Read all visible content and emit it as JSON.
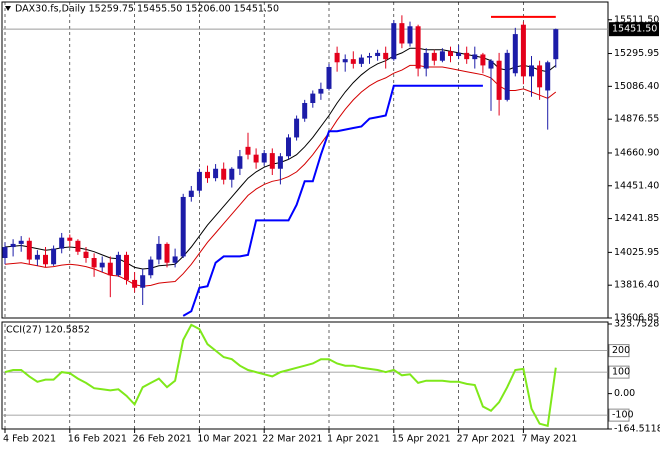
{
  "chart_data": [
    {
      "type": "candlestick",
      "title": "DAX30.fs,Daily  15259.75 15455.50 15206.00 15451.50",
      "categories": [
        "4 Feb 2021",
        null,
        null,
        null,
        null,
        null,
        null,
        null,
        "16 Feb 2021",
        null,
        null,
        null,
        null,
        null,
        null,
        null,
        "26 Feb 2021",
        null,
        null,
        null,
        null,
        null,
        null,
        null,
        "10 Mar 2021",
        null,
        null,
        null,
        null,
        null,
        null,
        null,
        "22 Mar 2021",
        null,
        null,
        null,
        null,
        null,
        null,
        null,
        "1 Apr 2021",
        null,
        null,
        null,
        null,
        null,
        null,
        null,
        "15 Apr 2021",
        null,
        null,
        null,
        null,
        null,
        null,
        null,
        "27 Apr 2021",
        null,
        null,
        null,
        null,
        null,
        null,
        null,
        "7 May 2021",
        null,
        null,
        null,
        null
      ],
      "open": [
        13990,
        14060,
        14080,
        14100,
        13980,
        14010,
        13950,
        14050,
        14120,
        14100,
        14030,
        13990,
        13930,
        13960,
        13880,
        14010,
        13850,
        13800,
        13880,
        13980,
        14080,
        13960,
        14000,
        14380,
        14420,
        14540,
        14500,
        14560,
        14490,
        14560,
        14700,
        14650,
        14600,
        14660,
        14560,
        14640,
        14760,
        14880,
        14980,
        15040,
        15070,
        15300,
        15240,
        15260,
        15230,
        15270,
        15280,
        15300,
        15260,
        15490,
        15360,
        15470,
        15200,
        15300,
        15250,
        15310,
        15280,
        15300,
        15260,
        15290,
        15200,
        15250,
        15000,
        15170,
        15480,
        15150,
        15220,
        15060,
        15259.75
      ],
      "high": [
        14090,
        14110,
        14130,
        14120,
        14040,
        14060,
        14070,
        14150,
        14140,
        14110,
        14060,
        14020,
        14000,
        14000,
        14030,
        14030,
        13900,
        13920,
        14000,
        14130,
        14090,
        14050,
        14400,
        14450,
        14560,
        14580,
        14590,
        14600,
        14570,
        14680,
        14790,
        14690,
        14680,
        14690,
        14660,
        14780,
        14900,
        15000,
        15060,
        15110,
        15230,
        15340,
        15290,
        15310,
        15290,
        15300,
        15320,
        15340,
        15510,
        15540,
        15500,
        15480,
        15330,
        15320,
        15330,
        15340,
        15350,
        15340,
        15340,
        15300,
        15260,
        15300,
        15320,
        15460,
        15500,
        15280,
        15250,
        15250,
        15455.5
      ],
      "low": [
        13950,
        14000,
        14030,
        13950,
        13940,
        13930,
        13940,
        14020,
        14060,
        14010,
        13960,
        13870,
        13900,
        13740,
        13870,
        13820,
        13770,
        13690,
        13860,
        13950,
        13930,
        13930,
        13990,
        14350,
        14400,
        14470,
        14480,
        14460,
        14440,
        14520,
        14620,
        14560,
        14580,
        14520,
        14460,
        14620,
        14740,
        14860,
        14950,
        15000,
        15060,
        15180,
        15180,
        15200,
        15210,
        15230,
        15250,
        15200,
        15250,
        15330,
        15340,
        15150,
        15150,
        15220,
        15240,
        15240,
        15260,
        15230,
        15200,
        15170,
        14930,
        14900,
        14990,
        15150,
        15100,
        15020,
        15000,
        14810,
        15206
      ],
      "close": [
        14060,
        14080,
        14100,
        13980,
        14010,
        13950,
        14050,
        14120,
        14100,
        14030,
        13990,
        13930,
        13960,
        13880,
        14010,
        13850,
        13800,
        13880,
        13980,
        14080,
        13960,
        14000,
        14380,
        14420,
        14540,
        14500,
        14560,
        14490,
        14560,
        14640,
        14650,
        14600,
        14660,
        14560,
        14640,
        14760,
        14880,
        14980,
        15040,
        15070,
        15210,
        15240,
        15260,
        15230,
        15270,
        15280,
        15300,
        15260,
        15490,
        15360,
        15470,
        15200,
        15300,
        15250,
        15310,
        15280,
        15300,
        15260,
        15290,
        15220,
        15250,
        15000,
        15300,
        15420,
        15150,
        15220,
        15080,
        15240,
        15451.5
      ],
      "up_color": "#1c1ca8",
      "down_color": "#e3001b",
      "overlays": [
        {
          "color": "#000000",
          "values": [
            14060,
            14065,
            14070,
            14060,
            14050,
            14040,
            14045,
            14055,
            14060,
            14055,
            14045,
            14030,
            14010,
            13990,
            13985,
            13960,
            13930,
            13920,
            13925,
            13940,
            13945,
            13950,
            14000,
            14060,
            14130,
            14200,
            14260,
            14320,
            14380,
            14440,
            14500,
            14540,
            14570,
            14590,
            14600,
            14620,
            14650,
            14700,
            14760,
            14830,
            14900,
            14980,
            15050,
            15110,
            15160,
            15200,
            15230,
            15250,
            15280,
            15300,
            15330,
            15330,
            15320,
            15320,
            15320,
            15310,
            15300,
            15290,
            15280,
            15270,
            15250,
            15200,
            15190,
            15210,
            15220,
            15210,
            15190,
            15180,
            15220
          ]
        },
        {
          "color": "#d40000",
          "values": [
            13950,
            13955,
            13960,
            13950,
            13940,
            13930,
            13935,
            13945,
            13950,
            13945,
            13935,
            13920,
            13900,
            13880,
            13875,
            13850,
            13820,
            13810,
            13815,
            13830,
            13835,
            13840,
            13890,
            13950,
            14020,
            14090,
            14150,
            14210,
            14270,
            14330,
            14390,
            14430,
            14460,
            14480,
            14490,
            14510,
            14540,
            14590,
            14650,
            14720,
            14790,
            14870,
            14940,
            15000,
            15050,
            15090,
            15120,
            15140,
            15170,
            15190,
            15220,
            15220,
            15210,
            15210,
            15210,
            15200,
            15190,
            15180,
            15170,
            15160,
            15140,
            15090,
            15060,
            15060,
            15070,
            15050,
            15030,
            15010,
            15050
          ]
        },
        {
          "color": "#0000ff",
          "width": 2,
          "values": [
            null,
            null,
            null,
            null,
            null,
            null,
            null,
            null,
            null,
            null,
            null,
            null,
            null,
            null,
            null,
            null,
            null,
            null,
            null,
            null,
            null,
            null,
            13620,
            13650,
            13800,
            13810,
            13960,
            14000,
            14000,
            14000,
            14010,
            14230,
            14230,
            14230,
            14230,
            14230,
            14330,
            14480,
            14480,
            14650,
            14800,
            14800,
            14810,
            14820,
            14830,
            14880,
            14890,
            14900,
            15090,
            15090,
            15090,
            15090,
            15090,
            15090,
            15090,
            15090,
            15090,
            15090,
            15090,
            15090,
            null,
            null,
            null,
            null,
            null,
            null,
            null,
            null,
            null
          ]
        },
        {
          "color": "#ff0000",
          "width": 2,
          "values": [
            null,
            null,
            null,
            null,
            null,
            null,
            null,
            null,
            null,
            null,
            null,
            null,
            null,
            null,
            null,
            null,
            null,
            null,
            null,
            null,
            null,
            null,
            null,
            null,
            null,
            null,
            null,
            null,
            null,
            null,
            null,
            null,
            null,
            null,
            null,
            null,
            null,
            null,
            null,
            null,
            null,
            null,
            null,
            null,
            null,
            null,
            null,
            null,
            null,
            null,
            null,
            null,
            null,
            null,
            null,
            null,
            null,
            null,
            null,
            null,
            15530,
            15530,
            15530,
            15530,
            15530,
            15530,
            15530,
            15530,
            15530
          ]
        }
      ],
      "price": {
        "value": 15451.5,
        "label": "15451.50"
      },
      "ylim": [
        13606.85,
        15625
      ],
      "yticks": [
        {
          "value": 15511.5,
          "label": "15511.50"
        },
        15295.95,
        {
          "value": 15086.4,
          "label": "15086.40"
        },
        14876.55,
        {
          "value": 14660.9,
          "label": "14660.90"
        },
        {
          "value": 14451.4,
          "label": "14451.40"
        },
        14241.85,
        14025.95,
        {
          "value": 13816.4,
          "label": "13816.40"
        },
        13606.85
      ],
      "grid": true
    },
    {
      "type": "line",
      "title": "CCI(27) 120.5852",
      "color": "#7fe81a",
      "values": [
        100,
        110,
        110,
        80,
        55,
        65,
        65,
        100,
        95,
        70,
        50,
        25,
        20,
        15,
        20,
        -10,
        -50,
        30,
        50,
        70,
        30,
        60,
        250,
        320,
        300,
        230,
        200,
        170,
        160,
        130,
        110,
        100,
        90,
        80,
        100,
        110,
        120,
        130,
        140,
        160,
        160,
        140,
        130,
        130,
        120,
        115,
        110,
        100,
        110,
        85,
        90,
        50,
        60,
        60,
        60,
        55,
        55,
        45,
        40,
        -60,
        -80,
        -40,
        30,
        110,
        115,
        -70,
        -140,
        -150,
        120.5852
      ],
      "ylim": [
        -164.5118,
        323.7528
      ],
      "yticks": [
        323.7528,
        {
          "value": 0,
          "label": "0.00"
        },
        -164.5118
      ],
      "levels": [
        200,
        100,
        -100
      ]
    }
  ]
}
